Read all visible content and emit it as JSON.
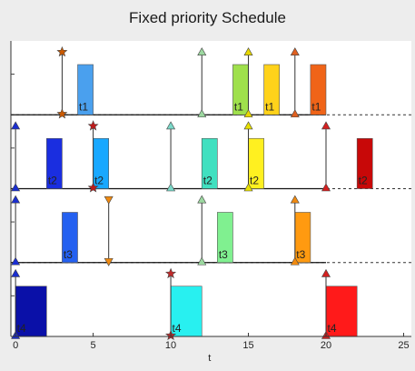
{
  "figure": {
    "title": "Fixed priority Schedule",
    "background": "#ededed",
    "axes_background": "#ffffff"
  },
  "chart_data": {
    "type": "gantt",
    "title": "Fixed priority Schedule",
    "xlabel": "t",
    "xlim": [
      -0.3,
      25.5
    ],
    "xticks": [
      0,
      5,
      10,
      15,
      20,
      25
    ],
    "x_tick_labels": [
      "0",
      "5",
      "10",
      "15",
      "20",
      "25"
    ],
    "grid": false,
    "rows": [
      {
        "task": "t1",
        "releases": [
          3,
          12,
          15,
          18
        ],
        "deadline_marks": [
          {
            "t": 3,
            "shape": "star",
            "color": "#cc5a00"
          },
          {
            "t": 12,
            "shape": "up",
            "color": "#9cd8a0"
          },
          {
            "t": 15,
            "shape": "up",
            "color": "#e8d800"
          },
          {
            "t": 18,
            "shape": "up",
            "color": "#e06020"
          }
        ],
        "jobs": [
          {
            "start": 4,
            "end": 5,
            "label": "t1",
            "color": "#4aa0ee"
          },
          {
            "start": 14,
            "end": 15,
            "label": "t1",
            "color": "#9fe04c"
          },
          {
            "start": 16,
            "end": 17,
            "label": "t1",
            "color": "#ffd21a"
          },
          {
            "start": 19,
            "end": 20,
            "label": "t1",
            "color": "#f06418"
          }
        ]
      },
      {
        "task": "t2",
        "releases": [
          0,
          5,
          10,
          15,
          20
        ],
        "deadline_marks": [
          {
            "t": 0,
            "shape": "up",
            "color": "#1a2ed0"
          },
          {
            "t": 5,
            "shape": "star",
            "color": "#c01a1a"
          },
          {
            "t": 10,
            "shape": "up",
            "color": "#7ad8c8"
          },
          {
            "t": 15,
            "shape": "up",
            "color": "#e8e000"
          },
          {
            "t": 20,
            "shape": "up",
            "color": "#d42020"
          }
        ],
        "jobs": [
          {
            "start": 2,
            "end": 3,
            "label": "t2",
            "color": "#1a2ee0"
          },
          {
            "start": 5,
            "end": 6,
            "label": "t2",
            "color": "#18a8ff"
          },
          {
            "start": 12,
            "end": 13,
            "label": "t2",
            "color": "#40e0c0"
          },
          {
            "start": 15,
            "end": 16,
            "label": "t2",
            "color": "#fff020"
          },
          {
            "start": 22,
            "end": 23,
            "label": "t2",
            "color": "#c80808"
          }
        ]
      },
      {
        "task": "t3",
        "releases": [
          0,
          6,
          12,
          18
        ],
        "deadline_marks": [
          {
            "t": 0,
            "shape": "up",
            "color": "#1a2ed0"
          },
          {
            "t": 6,
            "shape": "down",
            "color": "#f08a10"
          },
          {
            "t": 12,
            "shape": "up",
            "color": "#9cd8a0"
          },
          {
            "t": 18,
            "shape": "up",
            "color": "#f08a10"
          }
        ],
        "jobs": [
          {
            "start": 3,
            "end": 4,
            "label": "t3",
            "color": "#2460f0"
          },
          {
            "start": 13,
            "end": 14,
            "label": "t3",
            "color": "#80f090"
          },
          {
            "start": 18,
            "end": 19,
            "label": "t3",
            "color": "#ff9a10"
          }
        ]
      },
      {
        "task": "t4",
        "releases": [
          0,
          10,
          20
        ],
        "deadline_marks": [
          {
            "t": 0,
            "shape": "up",
            "color": "#1a2ed0"
          },
          {
            "t": 10,
            "shape": "star",
            "color": "#c02a2a"
          },
          {
            "t": 20,
            "shape": "up",
            "color": "#d42020"
          }
        ],
        "jobs": [
          {
            "start": 0,
            "end": 2,
            "label": "t4",
            "color": "#0a10a8"
          },
          {
            "start": 10,
            "end": 12,
            "label": "t4",
            "color": "#28f0f0"
          },
          {
            "start": 20,
            "end": 22,
            "label": "t4",
            "color": "#ff1a1a"
          }
        ]
      }
    ]
  }
}
